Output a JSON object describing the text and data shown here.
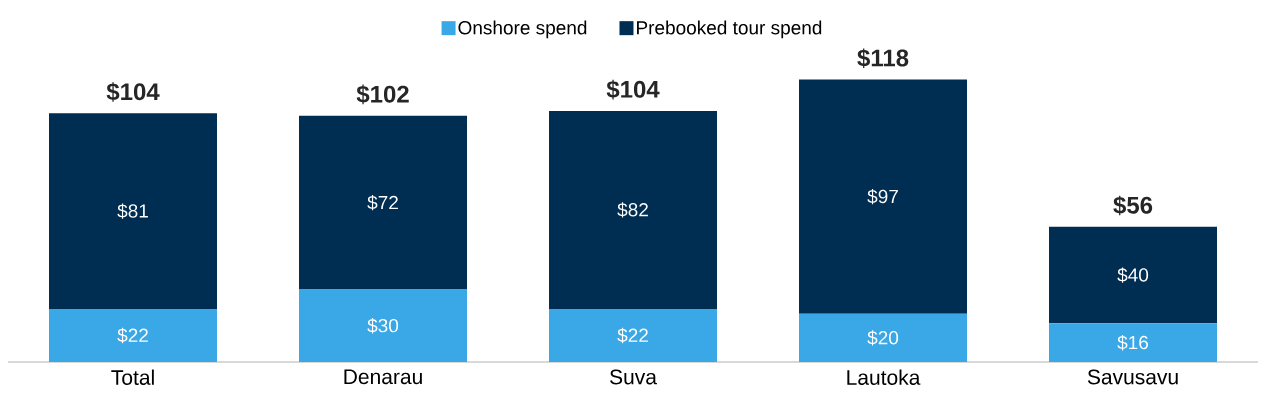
{
  "chart_data": {
    "type": "bar",
    "stacked": true,
    "legend": "top",
    "categories": [
      "Total",
      "Denarau",
      "Suva",
      "Lautoka",
      "Savusavu"
    ],
    "series": [
      {
        "name": "Onshore spend",
        "color": "#3aa8e6",
        "values": [
          22,
          30,
          22,
          20,
          16
        ],
        "value_labels": [
          "$22",
          "$30",
          "$22",
          "$20",
          "$16"
        ]
      },
      {
        "name": "Prebooked tour spend",
        "color": "#002d52",
        "values": [
          81,
          72,
          82,
          97,
          40
        ],
        "value_labels": [
          "$81",
          "$72",
          "$82",
          "$97",
          "$40"
        ]
      }
    ],
    "totals": [
      "$104",
      "$102",
      "$104",
      "$118",
      "$56"
    ]
  }
}
